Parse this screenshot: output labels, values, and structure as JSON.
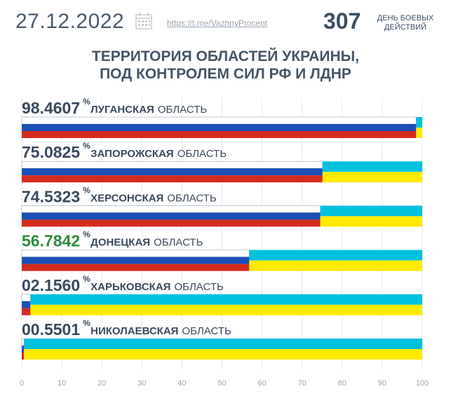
{
  "header": {
    "date": "27.12.2022",
    "link": "https://t.me/VazhnyProcent",
    "day_number": "307",
    "day_label_line1": "ДЕНЬ БОЕВЫХ",
    "day_label_line2": "ДЕЙСТВИЙ"
  },
  "title_line1": "ТЕРРИТОРИЯ ОБЛАСТЕЙ УКРАИНЫ,",
  "title_line2": "ПОД КОНТРОЛЕМ СИЛ РФ И ЛДНР",
  "colors": {
    "russia_white": "#ffffff",
    "russia_blue": "#1a4fb5",
    "russia_red": "#d52b1e",
    "ukraine_blue": "#00c1de",
    "ukraine_yellow": "#ffea00",
    "value_default": "#3a4a5c",
    "value_highlight": "#2e8b3e"
  },
  "chart_data": {
    "type": "bar",
    "orientation": "horizontal",
    "xlim": [
      0,
      100
    ],
    "x_ticks": [
      "0",
      "10",
      "20",
      "30",
      "40",
      "50",
      "60",
      "70",
      "80",
      "90",
      "100"
    ],
    "percent_sign": "%",
    "oblast_suffix": "ОБЛАСТЬ",
    "categories": [
      "ЛУГАНСКАЯ",
      "ЗАПОРОЖСКАЯ",
      "ХЕРСОНСКАЯ",
      "ДОНЕЦКАЯ",
      "ХАРЬКОВСКАЯ",
      "НИКОЛАЕВСКАЯ"
    ],
    "value_labels": [
      "98.4607",
      "75.0825",
      "74.5323",
      "56.7842",
      "02.1560",
      "00.5501"
    ],
    "values": [
      98.4607,
      75.0825,
      74.5323,
      56.7842,
      2.156,
      0.5501
    ],
    "highlight": [
      false,
      false,
      false,
      true,
      false,
      false
    ]
  }
}
